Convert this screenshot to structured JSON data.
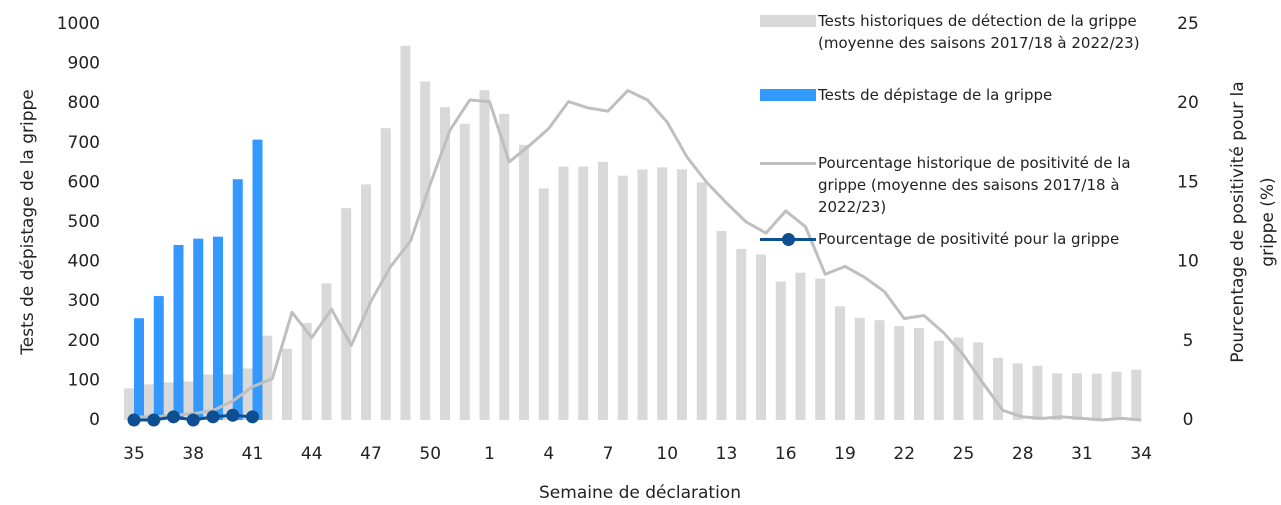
{
  "chart_data": {
    "type": "combo",
    "xlabel": "Semaine de déclaration",
    "ylabel": "Tests de dépistage de la grippe",
    "y2label": [
      "Pourcentage de positivité pour la",
      "grippe (%)"
    ],
    "categories": [
      35,
      null,
      null,
      38,
      null,
      null,
      41,
      null,
      null,
      44,
      null,
      null,
      47,
      null,
      null,
      50,
      null,
      null,
      1,
      null,
      null,
      4,
      null,
      null,
      7,
      null,
      null,
      10,
      null,
      null,
      13,
      null,
      null,
      16,
      null,
      null,
      19,
      null,
      null,
      22,
      null,
      null,
      25,
      null,
      null,
      28,
      null,
      null,
      31,
      null,
      null,
      34
    ],
    "ylim": [
      0,
      1000
    ],
    "yticks": [
      0,
      100,
      200,
      300,
      400,
      500,
      600,
      700,
      800,
      900,
      1000
    ],
    "y2lim": [
      0,
      25
    ],
    "y2ticks": [
      0,
      5,
      10,
      15,
      20,
      25
    ],
    "series": [
      {
        "name": "Tests historiques de détection de la grippe (moyenne des saisons 2017/18 à 2022/23)",
        "type": "bar",
        "color": "#d9d9d9",
        "values": [
          80,
          90,
          95,
          97,
          115,
          115,
          130,
          213,
          180,
          245,
          345,
          535,
          595,
          737,
          945,
          855,
          790,
          748,
          833,
          773,
          695,
          585,
          640,
          640,
          652,
          617,
          633,
          638,
          633,
          600,
          477,
          432,
          418,
          350,
          372,
          357,
          287,
          258,
          252,
          237,
          232,
          200,
          208,
          196,
          157,
          143,
          137,
          118,
          118,
          117,
          122,
          127
        ]
      },
      {
        "name": "Tests de dépistage de la grippe",
        "type": "bar",
        "color": "#3399ff",
        "values": [
          257,
          313,
          442,
          458,
          463,
          608,
          708,
          null,
          null,
          null,
          null,
          null,
          null,
          null,
          null,
          null,
          null,
          null,
          null,
          null,
          null,
          null,
          null,
          null,
          null,
          null,
          null,
          null,
          null,
          null,
          null,
          null,
          null,
          null,
          null,
          null,
          null,
          null,
          null,
          null,
          null,
          null,
          null,
          null,
          null,
          null,
          null,
          null,
          null,
          null,
          null,
          null
        ]
      },
      {
        "name": "Pourcentage historique de positivité de la grippe (moyenne des saisons 2017/18 à 2022/23)",
        "type": "line",
        "axis": "y2",
        "color": "#bfbfbf",
        "values": [
          0.2,
          0.2,
          0.3,
          0.4,
          0.6,
          1.2,
          2.1,
          2.6,
          6.8,
          5.2,
          7.0,
          4.7,
          7.5,
          9.7,
          11.3,
          14.9,
          18.3,
          20.2,
          20.1,
          16.3,
          17.3,
          18.4,
          20.1,
          19.7,
          19.5,
          20.8,
          20.2,
          18.8,
          16.6,
          15.0,
          13.7,
          12.5,
          11.8,
          13.2,
          12.2,
          9.2,
          9.7,
          9.0,
          8.1,
          6.4,
          6.6,
          5.5,
          4.1,
          2.3,
          0.6,
          0.2,
          0.1,
          0.2,
          0.1,
          0.0,
          0.1,
          0.0
        ]
      },
      {
        "name": "Pourcentage de positivité pour la grippe",
        "type": "line",
        "axis": "y2",
        "color": "#0d4f91",
        "marker": true,
        "values": [
          0,
          0,
          0.2,
          0,
          0.2,
          0.3,
          0.2,
          null,
          null,
          null,
          null,
          null,
          null,
          null,
          null,
          null,
          null,
          null,
          null,
          null,
          null,
          null,
          null,
          null,
          null,
          null,
          null,
          null,
          null,
          null,
          null,
          null,
          null,
          null,
          null,
          null,
          null,
          null,
          null,
          null,
          null,
          null,
          null,
          null,
          null,
          null,
          null,
          null,
          null,
          null,
          null,
          null
        ]
      }
    ]
  }
}
